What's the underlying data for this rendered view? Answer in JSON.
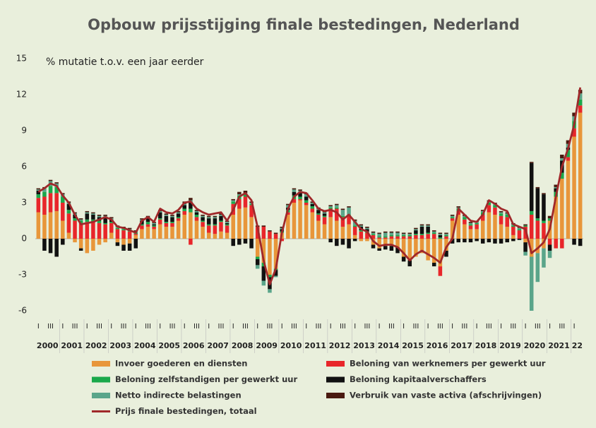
{
  "chart_data": {
    "type": "bar",
    "stacked": true,
    "title": "Opbouw prijsstijging finale bestedingen, Nederland",
    "annotation": "% mutatie t.o.v. een jaar eerder",
    "categories": [
      "I",
      null,
      "III",
      null,
      "I",
      null,
      "III",
      null,
      "I",
      null,
      "III",
      null,
      "I",
      null,
      "III",
      null,
      "I",
      null,
      "III",
      null,
      "I",
      null,
      "III",
      null,
      "I",
      null,
      "III",
      null,
      "I",
      null,
      "III",
      null,
      "I",
      null,
      "III",
      null,
      "I",
      null,
      "III",
      null,
      "I",
      null,
      "III",
      null,
      "I",
      null,
      "III",
      null,
      "I",
      null,
      "III",
      null,
      "I",
      null,
      "III",
      null,
      "I",
      null,
      "III",
      null,
      "I",
      null,
      "III",
      null,
      "I",
      null,
      "III",
      null,
      "I",
      null,
      "III",
      null,
      "I",
      null,
      "III",
      null,
      "I",
      null,
      "III",
      null,
      "I",
      null,
      "III",
      null,
      "I",
      null,
      "III",
      null,
      "I",
      null
    ],
    "years": [
      "2000",
      "2001",
      "2002",
      "2003",
      "2004",
      "2005",
      "2006",
      "2007",
      "2008",
      "2009",
      "2010",
      "2011",
      "2012",
      "2013",
      "2014",
      "2015",
      "2016",
      "2017",
      "2018",
      "2019",
      "2020",
      "2021",
      "22"
    ],
    "ylim": [
      -6,
      15
    ],
    "yticks": [
      -6,
      -3,
      0,
      3,
      6,
      9,
      12,
      15
    ],
    "grid": false,
    "series": [
      {
        "name": "Invoer goederen en diensten",
        "color": "#e8963a",
        "values": [
          2.2,
          2.0,
          2.2,
          2.3,
          1.5,
          0.5,
          -0.3,
          -0.8,
          -1.2,
          -1.0,
          -0.5,
          -0.3,
          0.5,
          -0.3,
          -0.5,
          -0.4,
          0.3,
          0.8,
          1.0,
          0.8,
          1.2,
          1.0,
          1.0,
          1.5,
          2.0,
          2.2,
          1.5,
          1.0,
          0.5,
          0.4,
          0.6,
          0.5,
          2.0,
          2.5,
          2.6,
          1.8,
          -1.5,
          -2.0,
          -3.0,
          -2.5,
          0.5,
          2.0,
          3.0,
          3.2,
          2.8,
          2.2,
          1.5,
          1.2,
          1.8,
          1.5,
          1.0,
          1.2,
          0.3,
          -0.2,
          -0.2,
          -0.5,
          -0.8,
          -0.6,
          -0.6,
          -0.7,
          -1.5,
          -1.8,
          -1.5,
          -1.2,
          -1.8,
          -2.0,
          -2.3,
          -1.0,
          1.5,
          2.0,
          1.2,
          0.8,
          0.8,
          1.5,
          2.2,
          2.0,
          1.2,
          1.0,
          0.3,
          0.0,
          -0.3,
          -1.5,
          -1.2,
          -0.8,
          1.5,
          3.5,
          5.0,
          6.5,
          8.5,
          10.5
        ]
      },
      {
        "name": "Beloning van werknemers per gewerkt uur",
        "color": "#e8262a",
        "values": [
          1.2,
          1.5,
          1.6,
          1.5,
          1.5,
          1.6,
          1.5,
          1.3,
          1.4,
          1.4,
          1.3,
          1.2,
          0.8,
          0.8,
          0.7,
          0.6,
          0.1,
          0.3,
          0.2,
          0.2,
          0.4,
          0.3,
          0.3,
          0.2,
          0.3,
          -0.5,
          0.3,
          0.4,
          0.6,
          0.7,
          0.8,
          0.6,
          0.9,
          0.8,
          0.9,
          1.0,
          1.0,
          1.0,
          0.6,
          0.4,
          -0.2,
          0.2,
          0.3,
          0.1,
          0.2,
          0.3,
          0.5,
          0.6,
          0.7,
          1.0,
          0.8,
          0.7,
          0.7,
          0.6,
          0.5,
          0.3,
          0.1,
          0.1,
          0.2,
          0.2,
          0.2,
          0.2,
          0.3,
          0.3,
          0.4,
          0.4,
          -0.8,
          0.2,
          0.2,
          0.3,
          0.4,
          0.3,
          0.4,
          0.5,
          0.6,
          0.6,
          0.7,
          0.8,
          0.7,
          0.7,
          1.0,
          2.0,
          1.5,
          1.3,
          -0.5,
          -0.8,
          -0.8,
          0.3,
          0.7,
          0.6
        ]
      },
      {
        "name": "Beloning zelfstandigen per gewerkt uur",
        "color": "#1aa84a",
        "values": [
          0.3,
          0.4,
          0.6,
          0.5,
          0.5,
          0.3,
          0.2,
          0.2,
          0.2,
          0.2,
          0.2,
          0.1,
          0.1,
          0.1,
          0.1,
          0.1,
          0.1,
          0.1,
          0.2,
          0.1,
          0.1,
          0.1,
          0.1,
          0.1,
          0.2,
          0.3,
          0.2,
          0.1,
          0.1,
          0.1,
          0.1,
          0.1,
          0.2,
          0.3,
          0.2,
          0.1,
          -0.2,
          -0.3,
          -0.2,
          -0.1,
          0.1,
          0.2,
          0.3,
          0.2,
          0.2,
          0.2,
          0.1,
          0.1,
          0.1,
          0.1,
          0.1,
          0.1,
          0.1,
          0.1,
          0.1,
          0.1,
          0.1,
          0.1,
          0.1,
          0.1,
          0.1,
          0.1,
          0.1,
          0.1,
          0.1,
          0.1,
          0.1,
          0.1,
          0.1,
          0.2,
          0.2,
          0.1,
          0.1,
          0.2,
          0.2,
          0.2,
          0.2,
          0.2,
          0.1,
          0.1,
          0.1,
          0.3,
          0.2,
          0.2,
          0.2,
          0.4,
          0.5,
          0.6,
          0.6,
          0.5
        ]
      },
      {
        "name": "Beloning kapitaalverschaffers",
        "color": "#111111",
        "values": [
          0.3,
          -1.0,
          -1.2,
          -1.5,
          -0.5,
          0.5,
          0.3,
          -0.2,
          0.5,
          0.4,
          0.3,
          0.5,
          0.2,
          -0.3,
          -0.5,
          -0.6,
          -0.8,
          0.3,
          0.3,
          0.1,
          0.5,
          0.5,
          0.4,
          0.3,
          0.3,
          0.6,
          0.2,
          0.3,
          0.5,
          0.5,
          0.4,
          0.1,
          -0.6,
          -0.5,
          -0.4,
          -0.8,
          -0.5,
          -1.2,
          -1.0,
          -0.5,
          0.2,
          0.2,
          0.3,
          0.3,
          0.3,
          0.2,
          0.3,
          0.2,
          -0.3,
          -0.6,
          -0.5,
          -0.8,
          -0.2,
          0.3,
          0.2,
          -0.3,
          -0.2,
          -0.3,
          -0.4,
          -0.5,
          -0.4,
          -0.5,
          0.3,
          0.6,
          0.5,
          -0.3,
          0.2,
          -0.5,
          -0.4,
          -0.3,
          -0.3,
          -0.3,
          -0.2,
          -0.4,
          -0.3,
          -0.4,
          -0.4,
          -0.3,
          -0.2,
          -0.1,
          -0.8,
          4.0,
          2.5,
          2.2,
          -0.5,
          0.3,
          1.0,
          0.2,
          -0.5,
          -0.6
        ]
      },
      {
        "name": "Netto indirecte belastingen",
        "color": "#5aa58a",
        "values": [
          0.1,
          0.3,
          0.4,
          0.3,
          0.2,
          0.1,
          0.1,
          0.1,
          0.1,
          0.1,
          0.1,
          0.1,
          0.1,
          0.1,
          0.1,
          0.1,
          0.1,
          0.1,
          0.1,
          0.1,
          0.1,
          0.1,
          0.1,
          0.1,
          0.1,
          0.1,
          0.1,
          0.1,
          0.1,
          0.1,
          0.1,
          0.1,
          0.1,
          0.1,
          0.1,
          0.1,
          -0.3,
          -0.4,
          -0.3,
          -0.1,
          0.1,
          0.2,
          0.2,
          0.2,
          0.2,
          0.1,
          0.1,
          0.1,
          0.1,
          0.2,
          0.5,
          0.6,
          0.4,
          0.1,
          0.1,
          0.1,
          0.2,
          0.3,
          0.2,
          0.2,
          0.1,
          0.1,
          0.1,
          0.1,
          0.1,
          0.1,
          0.1,
          0.1,
          0.1,
          0.1,
          0.1,
          0.1,
          0.1,
          0.1,
          0.1,
          0.1,
          0.1,
          0.1,
          0.1,
          0.1,
          -0.3,
          -4.5,
          -2.4,
          -1.6,
          -0.6,
          0.1,
          0.2,
          0.3,
          0.4,
          0.5
        ]
      },
      {
        "name": "Verbruik van vaste activa (afschrijvingen)",
        "color": "#4a1a10",
        "values": [
          0.1,
          0.1,
          0.1,
          0.1,
          0.1,
          0.1,
          0.1,
          0.1,
          0.1,
          0.1,
          0.1,
          0.1,
          0.1,
          0.1,
          0.1,
          0.1,
          0.1,
          0.1,
          0.1,
          0.1,
          0.1,
          0.1,
          0.1,
          0.1,
          0.2,
          0.2,
          0.1,
          0.1,
          0.1,
          0.1,
          0.1,
          0.1,
          0.1,
          0.2,
          0.2,
          0.1,
          0.1,
          0.1,
          0.1,
          0.1,
          0.1,
          0.1,
          0.1,
          0.1,
          0.1,
          0.1,
          0.1,
          0.1,
          0.1,
          0.1,
          0.1,
          0.1,
          0.1,
          0.1,
          0.1,
          0.1,
          0.1,
          0.1,
          0.1,
          0.1,
          0.1,
          0.1,
          0.1,
          0.1,
          0.1,
          0.1,
          0.1,
          0.1,
          0.1,
          0.1,
          0.1,
          0.1,
          0.1,
          0.1,
          0.1,
          0.1,
          0.1,
          0.1,
          0.1,
          0.1,
          0.1,
          0.1,
          0.1,
          0.1,
          0.2,
          0.2,
          0.3,
          0.3,
          0.3,
          0.3
        ]
      }
    ],
    "total_line": {
      "name": "Prijs finale bestedingen, totaal",
      "color": "#a0282a",
      "values": [
        3.9,
        4.2,
        4.6,
        4.4,
        3.6,
        3.0,
        2.0,
        1.2,
        1.3,
        1.4,
        1.6,
        1.8,
        1.6,
        1.0,
        0.9,
        0.7,
        0.5,
        1.5,
        1.8,
        1.4,
        2.5,
        2.2,
        2.1,
        2.4,
        3.0,
        3.1,
        2.5,
        2.2,
        2.0,
        2.1,
        2.2,
        1.5,
        2.4,
        3.5,
        3.8,
        3.2,
        1.0,
        -1.8,
        -3.8,
        -2.5,
        0.5,
        2.5,
        3.5,
        3.9,
        3.8,
        3.2,
        2.5,
        2.3,
        2.4,
        2.2,
        1.6,
        2.0,
        1.4,
        0.8,
        0.6,
        -0.2,
        -0.6,
        -0.5,
        -0.5,
        -0.7,
        -1.2,
        -1.8,
        -1.3,
        -1.0,
        -1.3,
        -1.6,
        -2.0,
        -0.7,
        0.0,
        2.5,
        2.0,
        1.5,
        1.4,
        2.0,
        3.2,
        2.9,
        2.5,
        2.3,
        1.2,
        1.0,
        0.8,
        -1.2,
        -0.8,
        -0.3,
        0.8,
        3.5,
        6.0,
        7.5,
        9.5,
        12.6
      ]
    }
  }
}
